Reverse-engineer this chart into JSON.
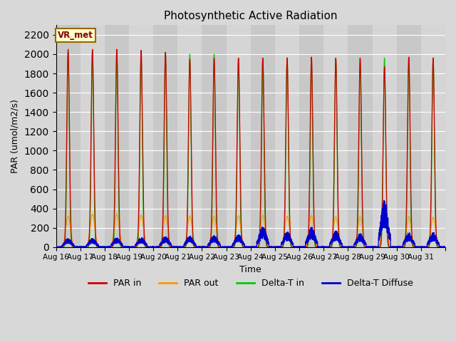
{
  "title": "Photosynthetic Active Radiation",
  "xlabel": "Time",
  "ylabel": "PAR (umol/m2/s)",
  "ylim": [
    0,
    2300
  ],
  "yticks": [
    0,
    200,
    400,
    600,
    800,
    1000,
    1200,
    1400,
    1600,
    1800,
    2000,
    2200
  ],
  "background_color": "#d8d8d8",
  "plot_bg_color": "#cccccc",
  "par_in_color": "#cc0000",
  "par_out_color": "#ff9900",
  "delta_t_in_color": "#00cc00",
  "delta_t_diffuse_color": "#0000cc",
  "vr_met_box_color": "#ffffcc",
  "vr_met_text_color": "#800000",
  "vr_met_border_color": "#996600",
  "num_days": 16,
  "start_day": 16,
  "end_day": 31,
  "par_in_peaks": [
    2050,
    2050,
    2050,
    2040,
    2020,
    1950,
    1960,
    1960,
    1960,
    1960,
    1970,
    1960,
    1960,
    1870,
    1970,
    1960
  ],
  "par_out_peaks": [
    320,
    340,
    340,
    330,
    325,
    325,
    320,
    325,
    330,
    320,
    325,
    315,
    315,
    315,
    315,
    310
  ],
  "delta_t_in_peaks": [
    2020,
    2020,
    2010,
    2000,
    2010,
    2000,
    2000,
    1960,
    1960,
    1965,
    1960,
    1960,
    1960,
    1960,
    1960,
    1960
  ],
  "delta_t_diffuse_vals": [
    70,
    70,
    75,
    80,
    85,
    90,
    95,
    100,
    170,
    125,
    160,
    130,
    110,
    380,
    115,
    120
  ]
}
